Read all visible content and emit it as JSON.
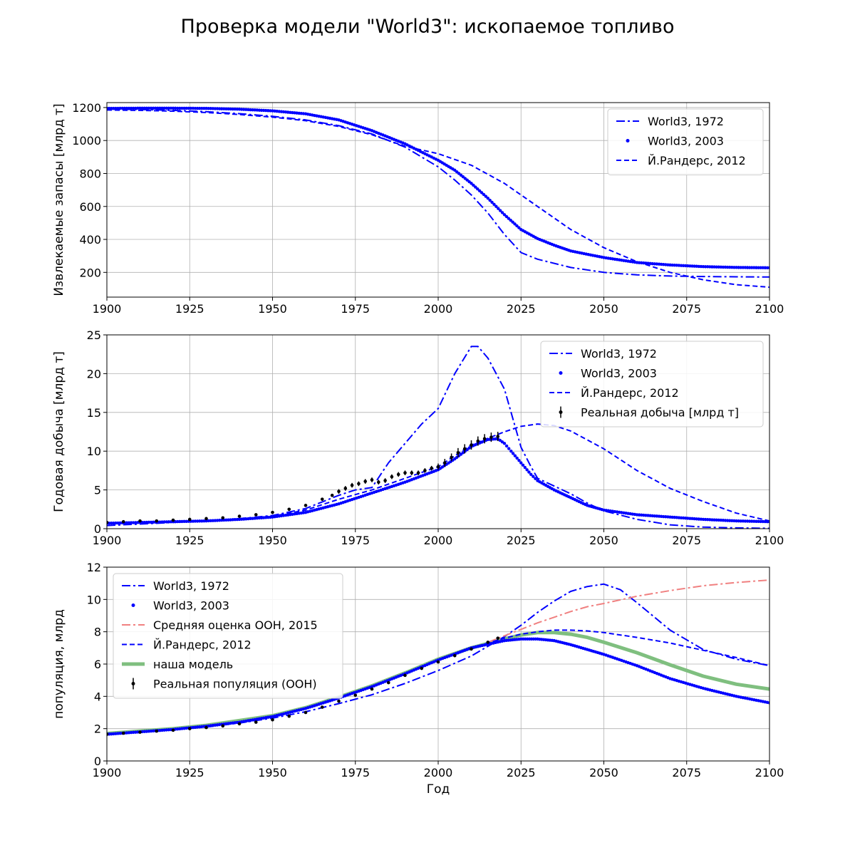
{
  "figure": {
    "title": "Проверка модели \"World3\": ископаемое топливо"
  },
  "colors": {
    "world3": "#0000ff",
    "observed": "#000000",
    "un": "#f08080",
    "model": "#7fbf7f"
  },
  "chart_data": [
    {
      "type": "line",
      "ylabel": "Извлекаемые запасы [млрд т]",
      "xlabel": "",
      "xlim": [
        1900,
        2100
      ],
      "ylim": [
        50,
        1230
      ],
      "xticks": [
        1900,
        1925,
        1950,
        1975,
        2000,
        2025,
        2050,
        2075,
        2100
      ],
      "yticks": [
        200,
        400,
        600,
        800,
        1000,
        1200
      ],
      "grid": true,
      "legend_position": "top-right",
      "series": [
        {
          "name": "World3, 1972",
          "style": "dashdot",
          "x": [
            1900,
            1910,
            1920,
            1930,
            1940,
            1950,
            1960,
            1970,
            1980,
            1990,
            2000,
            2005,
            2010,
            2015,
            2020,
            2025,
            2030,
            2040,
            2050,
            2060,
            2070,
            2080,
            2090,
            2100
          ],
          "y": [
            1190,
            1188,
            1183,
            1175,
            1163,
            1147,
            1125,
            1090,
            1040,
            960,
            840,
            760,
            670,
            560,
            430,
            320,
            280,
            230,
            200,
            185,
            178,
            175,
            173,
            172
          ]
        },
        {
          "name": "World3, 2003",
          "style": "dots",
          "x": [
            1900,
            1910,
            1920,
            1930,
            1940,
            1950,
            1960,
            1970,
            1980,
            1990,
            2000,
            2005,
            2010,
            2015,
            2020,
            2025,
            2030,
            2035,
            2040,
            2050,
            2060,
            2070,
            2080,
            2090,
            2100
          ],
          "y": [
            1195,
            1196,
            1196,
            1195,
            1190,
            1180,
            1162,
            1125,
            1060,
            980,
            880,
            820,
            740,
            650,
            550,
            460,
            405,
            365,
            330,
            290,
            260,
            245,
            235,
            230,
            228
          ]
        },
        {
          "name": "Й.Рандерс, 2012",
          "style": "dashed",
          "x": [
            1900,
            1910,
            1920,
            1930,
            1940,
            1950,
            1960,
            1970,
            1980,
            1990,
            2000,
            2010,
            2020,
            2030,
            2040,
            2050,
            2060,
            2070,
            2080,
            2090,
            2100
          ],
          "y": [
            1185,
            1183,
            1178,
            1170,
            1158,
            1142,
            1120,
            1085,
            1035,
            965,
            920,
            850,
            740,
            600,
            460,
            350,
            265,
            200,
            155,
            125,
            110
          ]
        }
      ]
    },
    {
      "type": "line",
      "ylabel": "Годовая добыча [млрд т]",
      "xlabel": "",
      "xlim": [
        1900,
        2100
      ],
      "ylim": [
        0,
        25
      ],
      "xticks": [
        1900,
        1925,
        1950,
        1975,
        2000,
        2025,
        2050,
        2075,
        2100
      ],
      "yticks": [
        0,
        5,
        10,
        15,
        20,
        25
      ],
      "grid": true,
      "legend_position": "top-right",
      "series": [
        {
          "name": "World3, 1972",
          "style": "dashdot",
          "x": [
            1900,
            1910,
            1920,
            1930,
            1940,
            1950,
            1960,
            1970,
            1975,
            1980,
            1985,
            1990,
            1995,
            2000,
            2005,
            2010,
            2012,
            2015,
            2020,
            2025,
            2028,
            2030,
            2035,
            2040,
            2045,
            2050,
            2060,
            2070,
            2080,
            2090,
            2100
          ],
          "y": [
            0.4,
            0.6,
            0.8,
            1.0,
            1.3,
            1.7,
            2.6,
            4.3,
            5.0,
            5.3,
            8.5,
            11.0,
            13.5,
            15.5,
            20.0,
            23.5,
            23.5,
            22.0,
            18.0,
            10.5,
            8.0,
            6.5,
            5.5,
            4.5,
            3.3,
            2.3,
            1.2,
            0.5,
            0.2,
            0.1,
            0.05
          ]
        },
        {
          "name": "World3, 2003",
          "style": "dots",
          "x": [
            1900,
            1910,
            1920,
            1930,
            1940,
            1950,
            1960,
            1970,
            1980,
            1990,
            2000,
            2005,
            2010,
            2015,
            2018,
            2020,
            2022,
            2025,
            2028,
            2030,
            2035,
            2040,
            2045,
            2050,
            2060,
            2070,
            2080,
            2090,
            2100
          ],
          "y": [
            0.7,
            0.8,
            0.9,
            1.0,
            1.2,
            1.5,
            2.1,
            3.2,
            4.6,
            6.0,
            7.6,
            9.0,
            10.6,
            11.5,
            11.6,
            11.0,
            10.0,
            8.5,
            7.0,
            6.2,
            5.0,
            4.0,
            3.0,
            2.4,
            1.8,
            1.5,
            1.2,
            1.0,
            0.9
          ]
        },
        {
          "name": "Й.Рандерс, 2012",
          "style": "dashed",
          "x": [
            1900,
            1910,
            1920,
            1930,
            1940,
            1950,
            1960,
            1970,
            1980,
            1990,
            2000,
            2010,
            2020,
            2025,
            2030,
            2035,
            2040,
            2050,
            2060,
            2070,
            2080,
            2090,
            2100
          ],
          "y": [
            0.7,
            0.8,
            0.9,
            1.0,
            1.2,
            1.6,
            2.4,
            3.8,
            5.0,
            6.5,
            8.0,
            10.8,
            12.5,
            13.2,
            13.5,
            13.3,
            12.6,
            10.3,
            7.5,
            5.2,
            3.5,
            2.0,
            1.0
          ]
        },
        {
          "name": "Реальная добыча [млрд т]",
          "style": "errorbar",
          "x": [
            1900,
            1905,
            1910,
            1915,
            1920,
            1925,
            1930,
            1935,
            1940,
            1945,
            1950,
            1955,
            1960,
            1965,
            1968,
            1970,
            1972,
            1974,
            1976,
            1978,
            1980,
            1982,
            1984,
            1986,
            1988,
            1990,
            1992,
            1994,
            1996,
            1998,
            2000,
            2002,
            2004,
            2006,
            2008,
            2010,
            2012,
            2014,
            2016,
            2018
          ],
          "y": [
            0.8,
            0.9,
            1.0,
            1.0,
            1.1,
            1.2,
            1.3,
            1.4,
            1.6,
            1.8,
            2.1,
            2.5,
            3.0,
            3.8,
            4.3,
            4.8,
            5.2,
            5.6,
            5.8,
            6.1,
            6.3,
            6.0,
            6.2,
            6.7,
            7.0,
            7.2,
            7.2,
            7.2,
            7.5,
            7.8,
            8.0,
            8.5,
            9.2,
            9.8,
            10.3,
            10.8,
            11.3,
            11.6,
            11.8,
            11.9
          ],
          "err": [
            0.1,
            0.1,
            0.1,
            0.1,
            0.1,
            0.1,
            0.1,
            0.1,
            0.1,
            0.1,
            0.1,
            0.1,
            0.15,
            0.2,
            0.2,
            0.3,
            0.3,
            0.3,
            0.3,
            0.3,
            0.3,
            0.3,
            0.3,
            0.3,
            0.3,
            0.3,
            0.3,
            0.3,
            0.3,
            0.3,
            0.4,
            0.5,
            0.5,
            0.6,
            0.6,
            0.6,
            0.6,
            0.6,
            0.6,
            0.6
          ]
        }
      ]
    },
    {
      "type": "line",
      "ylabel": "популяция, млрд",
      "xlabel": "Год",
      "xlim": [
        1900,
        2100
      ],
      "ylim": [
        0,
        12
      ],
      "xticks": [
        1900,
        1925,
        1950,
        1975,
        2000,
        2025,
        2050,
        2075,
        2100
      ],
      "yticks": [
        0,
        2,
        4,
        6,
        8,
        10,
        12
      ],
      "grid": true,
      "legend_position": "top-left",
      "series": [
        {
          "name": "World3, 1972",
          "style": "dashdot",
          "x": [
            1900,
            1910,
            1920,
            1930,
            1940,
            1950,
            1960,
            1970,
            1980,
            1990,
            2000,
            2010,
            2020,
            2025,
            2030,
            2035,
            2040,
            2045,
            2050,
            2055,
            2060,
            2070,
            2080,
            2090,
            2100
          ],
          "y": [
            1.7,
            1.8,
            1.95,
            2.1,
            2.35,
            2.65,
            3.05,
            3.55,
            4.1,
            4.8,
            5.6,
            6.5,
            7.7,
            8.4,
            9.2,
            9.9,
            10.5,
            10.8,
            10.95,
            10.6,
            9.8,
            8.1,
            6.9,
            6.3,
            5.9
          ]
        },
        {
          "name": "World3, 2003",
          "style": "dots",
          "x": [
            1900,
            1910,
            1920,
            1930,
            1940,
            1950,
            1960,
            1970,
            1980,
            1990,
            2000,
            2010,
            2020,
            2025,
            2030,
            2035,
            2040,
            2045,
            2050,
            2060,
            2070,
            2080,
            2090,
            2100
          ],
          "y": [
            1.65,
            1.8,
            1.95,
            2.15,
            2.4,
            2.75,
            3.25,
            3.9,
            4.6,
            5.4,
            6.25,
            7.0,
            7.45,
            7.55,
            7.55,
            7.45,
            7.2,
            6.9,
            6.6,
            5.9,
            5.1,
            4.5,
            4.0,
            3.6
          ]
        },
        {
          "name": "Средняя оценка ООН, 2015",
          "style": "dashdot-un",
          "x": [
            2015,
            2020,
            2025,
            2030,
            2035,
            2040,
            2045,
            2050,
            2060,
            2070,
            2080,
            2090,
            2100
          ],
          "y": [
            7.35,
            7.75,
            8.15,
            8.55,
            8.9,
            9.25,
            9.55,
            9.75,
            10.2,
            10.55,
            10.85,
            11.05,
            11.2
          ]
        },
        {
          "name": "Й.Рандерс, 2012",
          "style": "dashed",
          "x": [
            1900,
            1910,
            1920,
            1930,
            1940,
            1950,
            1960,
            1970,
            1980,
            1990,
            2000,
            2010,
            2020,
            2025,
            2030,
            2035,
            2040,
            2045,
            2050,
            2060,
            2070,
            2080,
            2090,
            2100
          ],
          "y": [
            1.65,
            1.8,
            1.95,
            2.15,
            2.4,
            2.75,
            3.25,
            3.9,
            4.6,
            5.4,
            6.25,
            7.0,
            7.6,
            7.85,
            8.0,
            8.1,
            8.1,
            8.05,
            7.95,
            7.65,
            7.3,
            6.85,
            6.4,
            5.9
          ]
        },
        {
          "name": "наша модель",
          "style": "thick",
          "x": [
            1900,
            1910,
            1920,
            1930,
            1940,
            1950,
            1960,
            1970,
            1980,
            1990,
            2000,
            2010,
            2020,
            2025,
            2030,
            2035,
            2040,
            2045,
            2050,
            2060,
            2070,
            2080,
            2090,
            2100
          ],
          "y": [
            1.7,
            1.85,
            2.0,
            2.2,
            2.5,
            2.8,
            3.3,
            3.95,
            4.65,
            5.45,
            6.3,
            7.0,
            7.55,
            7.8,
            7.95,
            7.95,
            7.85,
            7.65,
            7.35,
            6.7,
            5.95,
            5.25,
            4.75,
            4.45
          ]
        },
        {
          "name": "Реальная популяция (ООН)",
          "style": "errorbar",
          "x": [
            1900,
            1905,
            1910,
            1915,
            1920,
            1925,
            1930,
            1935,
            1940,
            1945,
            1950,
            1955,
            1960,
            1965,
            1970,
            1975,
            1980,
            1985,
            1990,
            1995,
            2000,
            2005,
            2010,
            2015,
            2018
          ],
          "y": [
            1.65,
            1.72,
            1.78,
            1.85,
            1.9,
            2.0,
            2.07,
            2.17,
            2.3,
            2.4,
            2.55,
            2.77,
            3.0,
            3.33,
            3.7,
            4.07,
            4.45,
            4.85,
            5.3,
            5.73,
            6.13,
            6.52,
            6.93,
            7.35,
            7.6
          ],
          "err": [
            0.05,
            0.05,
            0.05,
            0.05,
            0.05,
            0.05,
            0.05,
            0.05,
            0.05,
            0.05,
            0.05,
            0.05,
            0.05,
            0.05,
            0.05,
            0.05,
            0.05,
            0.05,
            0.05,
            0.05,
            0.05,
            0.05,
            0.05,
            0.05,
            0.05
          ]
        }
      ]
    }
  ]
}
